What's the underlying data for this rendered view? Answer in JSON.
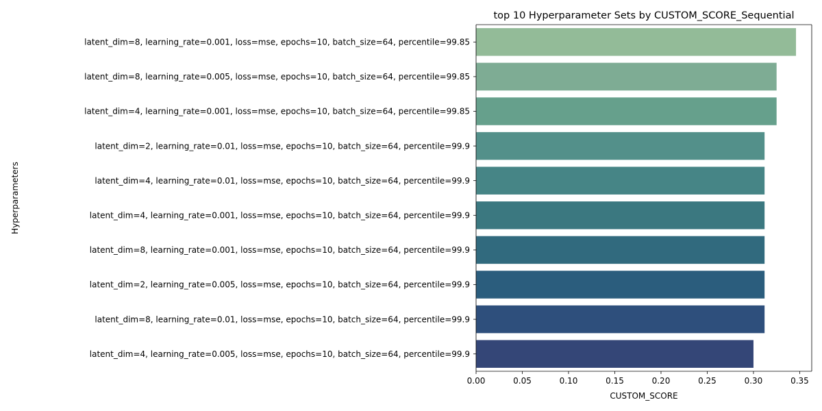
{
  "chart_data": {
    "type": "bar",
    "orientation": "horizontal",
    "title": "top 10 Hyperparameter Sets by CUSTOM_SCORE_Sequential",
    "xlabel": "CUSTOM_SCORE",
    "ylabel": "Hyperparameters",
    "xlim": [
      0,
      0.363
    ],
    "xticks": [
      "0.00",
      "0.05",
      "0.10",
      "0.15",
      "0.20",
      "0.25",
      "0.30",
      "0.35"
    ],
    "grid": false,
    "categories": [
      "latent_dim=8, learning_rate=0.001, loss=mse, epochs=10, batch_size=64, percentile=99.85",
      "latent_dim=8, learning_rate=0.005, loss=mse, epochs=10, batch_size=64, percentile=99.85",
      "latent_dim=4, learning_rate=0.001, loss=mse, epochs=10, batch_size=64, percentile=99.85",
      "latent_dim=2, learning_rate=0.01, loss=mse, epochs=10, batch_size=64, percentile=99.9",
      "latent_dim=4, learning_rate=0.01, loss=mse, epochs=10, batch_size=64, percentile=99.9",
      "latent_dim=4, learning_rate=0.001, loss=mse, epochs=10, batch_size=64, percentile=99.9",
      "latent_dim=8, learning_rate=0.001, loss=mse, epochs=10, batch_size=64, percentile=99.9",
      "latent_dim=2, learning_rate=0.005, loss=mse, epochs=10, batch_size=64, percentile=99.9",
      "latent_dim=8, learning_rate=0.01, loss=mse, epochs=10, batch_size=64, percentile=99.9",
      "latent_dim=4, learning_rate=0.005, loss=mse, epochs=10, batch_size=64, percentile=99.9"
    ],
    "values": [
      0.346,
      0.325,
      0.325,
      0.312,
      0.312,
      0.312,
      0.312,
      0.312,
      0.312,
      0.3
    ],
    "colors": [
      "#93bb98",
      "#7eac94",
      "#66a08c",
      "#53908a",
      "#468586",
      "#3b7880",
      "#316a7e",
      "#2b5d7d",
      "#2e4f7c",
      "#344677"
    ]
  }
}
